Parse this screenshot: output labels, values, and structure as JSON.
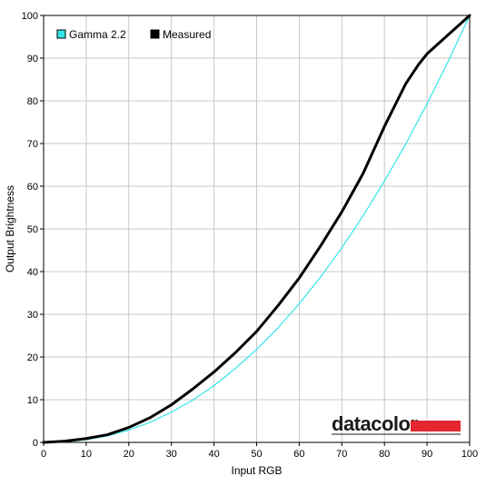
{
  "chart_data": {
    "type": "line",
    "xlabel": "Input RGB",
    "ylabel": "Output Brightness",
    "xlim": [
      0,
      100
    ],
    "ylim": [
      0,
      100
    ],
    "xticks": [
      "0",
      "10",
      "20",
      "30",
      "40",
      "50",
      "60",
      "70",
      "80",
      "90",
      "100"
    ],
    "yticks": [
      "0",
      "10",
      "20",
      "30",
      "40",
      "50",
      "60",
      "70",
      "80",
      "90",
      "100"
    ],
    "grid": true,
    "legend_position": "top-left",
    "series": [
      {
        "name": "Gamma 2.2",
        "color": "#33e6e6",
        "x": [
          0,
          5,
          10,
          15,
          20,
          25,
          30,
          35,
          40,
          45,
          50,
          55,
          60,
          65,
          70,
          75,
          80,
          85,
          90,
          95,
          100
        ],
        "y": [
          0,
          0.14,
          0.63,
          1.5,
          2.9,
          4.7,
          7.1,
          9.9,
          13.3,
          17.3,
          21.8,
          26.8,
          32.5,
          38.7,
          45.6,
          53.1,
          61.2,
          69.9,
          79.3,
          89.3,
          100
        ]
      },
      {
        "name": "Measured",
        "color": "#000000",
        "x": [
          0,
          5,
          10,
          15,
          20,
          25,
          30,
          35,
          40,
          45,
          50,
          55,
          60,
          65,
          70,
          75,
          80,
          83,
          85,
          88,
          90,
          95,
          100
        ],
        "y": [
          0,
          0.3,
          0.9,
          1.8,
          3.5,
          5.8,
          8.8,
          12.5,
          16.5,
          21,
          26,
          32,
          38.5,
          46,
          54,
          63,
          74,
          80,
          84,
          88.5,
          91,
          95.5,
          100
        ]
      }
    ],
    "watermark": "datacolor"
  }
}
